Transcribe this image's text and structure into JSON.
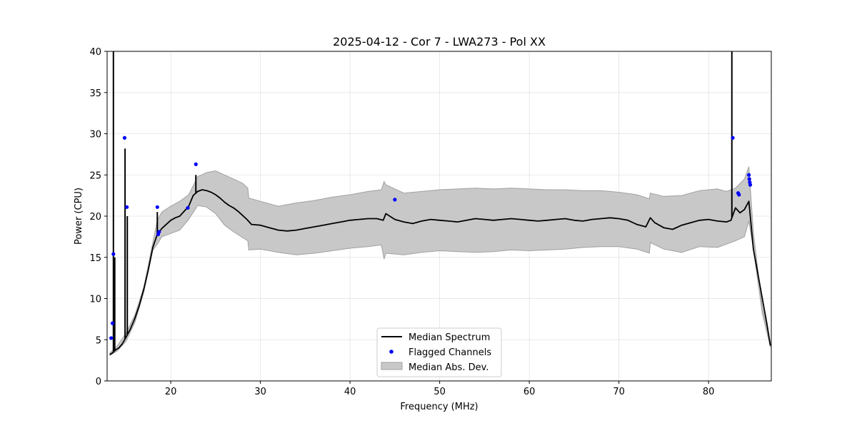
{
  "chart_data": {
    "type": "line",
    "title": "2025-04-12 - Cor 7 - LWA273 - Pol XX",
    "xlabel": "Frequency (MHz)",
    "ylabel": "Power (CPU)",
    "xlim": [
      12.9,
      87.0
    ],
    "ylim": [
      0,
      40
    ],
    "xticks": [
      20,
      30,
      40,
      50,
      60,
      70,
      80
    ],
    "yticks": [
      0,
      5,
      10,
      15,
      20,
      25,
      30,
      35,
      40
    ],
    "grid": true,
    "legend_position": "bottom-center",
    "legend": [
      "Median Spectrum",
      "Flagged Channels",
      "Median Abs. Dev."
    ],
    "colors": {
      "median": "#000000",
      "flagged": "#0000ff",
      "mad_fill": "#c8c8c8",
      "mad_edge": "#a0a0a0"
    },
    "series": [
      {
        "name": "Median Spectrum",
        "x": [
          13.2,
          13.5,
          13.7,
          13.9,
          14.2,
          14.6,
          15.0,
          15.5,
          16.0,
          16.5,
          17.0,
          17.5,
          18.0,
          18.5,
          19.0,
          19.5,
          20.0,
          20.5,
          21.0,
          21.5,
          22.0,
          22.5,
          23.0,
          23.5,
          24.0,
          24.5,
          25.0,
          25.5,
          26.0,
          26.5,
          27.0,
          27.5,
          28.0,
          28.5,
          29.0,
          30.0,
          31.0,
          32.0,
          33.0,
          34.0,
          35.0,
          36.0,
          37.0,
          38.0,
          39.0,
          40.0,
          41.0,
          42.0,
          43.0,
          43.7,
          44.0,
          45.0,
          46.0,
          47.0,
          48.0,
          49.0,
          50.0,
          51.0,
          52.0,
          53.0,
          54.0,
          55.0,
          56.0,
          57.0,
          58.0,
          59.0,
          60.0,
          61.0,
          62.0,
          63.0,
          64.0,
          65.0,
          66.0,
          67.0,
          68.0,
          69.0,
          70.0,
          71.0,
          72.0,
          73.0,
          73.5,
          74.0,
          75.0,
          76.0,
          77.0,
          78.0,
          79.0,
          80.0,
          81.0,
          82.0,
          82.5,
          83.0,
          83.5,
          84.0,
          84.5,
          85.0,
          85.5,
          86.0,
          86.5,
          86.9
        ],
        "values": [
          3.2,
          3.4,
          3.6,
          3.8,
          4.0,
          4.5,
          5.3,
          6.3,
          7.6,
          9.2,
          11.2,
          13.5,
          16.2,
          17.8,
          18.5,
          19.0,
          19.5,
          19.8,
          20.0,
          20.6,
          21.2,
          22.5,
          23.0,
          23.2,
          23.1,
          22.9,
          22.6,
          22.2,
          21.7,
          21.3,
          21.0,
          20.6,
          20.1,
          19.6,
          19.0,
          18.9,
          18.6,
          18.3,
          18.2,
          18.3,
          18.5,
          18.7,
          18.9,
          19.1,
          19.3,
          19.5,
          19.6,
          19.7,
          19.7,
          19.5,
          20.3,
          19.6,
          19.3,
          19.1,
          19.4,
          19.6,
          19.5,
          19.4,
          19.3,
          19.5,
          19.7,
          19.6,
          19.5,
          19.6,
          19.7,
          19.6,
          19.5,
          19.4,
          19.5,
          19.6,
          19.7,
          19.5,
          19.4,
          19.6,
          19.7,
          19.8,
          19.7,
          19.5,
          19.0,
          18.7,
          19.8,
          19.2,
          18.6,
          18.4,
          18.9,
          19.2,
          19.5,
          19.6,
          19.4,
          19.3,
          19.5,
          21.0,
          20.4,
          20.8,
          21.8,
          16.0,
          13.0,
          10.0,
          7.0,
          4.3
        ],
        "spikes": [
          {
            "x": 13.6,
            "top": 40
          },
          {
            "x": 13.75,
            "top": 15.0
          },
          {
            "x": 14.9,
            "top": 28.2
          },
          {
            "x": 15.15,
            "top": 20.0
          },
          {
            "x": 18.5,
            "top": 20.5
          },
          {
            "x": 22.8,
            "top": 25.0
          },
          {
            "x": 82.6,
            "top": 40
          }
        ]
      },
      {
        "name": "Median Abs. Dev.",
        "x": [
          13.2,
          14.0,
          15.0,
          16.0,
          17.0,
          18.0,
          18.5,
          19.0,
          20.0,
          21.0,
          22.0,
          23.0,
          24.0,
          25.0,
          26.0,
          27.0,
          28.0,
          28.6,
          28.7,
          30.0,
          32.0,
          34.0,
          36.0,
          38.0,
          40.0,
          42.0,
          43.5,
          43.8,
          44.0,
          46.0,
          48.0,
          50.0,
          52.0,
          54.0,
          56.0,
          58.0,
          60.0,
          62.0,
          64.0,
          66.0,
          68.0,
          70.0,
          72.0,
          73.4,
          73.5,
          75.0,
          77.0,
          79.0,
          81.0,
          82.0,
          83.0,
          84.0,
          84.5,
          85.0,
          86.0,
          86.9
        ],
        "upper": [
          3.4,
          4.2,
          5.8,
          8.0,
          11.4,
          16.8,
          19.5,
          20.5,
          21.2,
          21.8,
          22.6,
          24.8,
          25.3,
          25.5,
          25.0,
          24.5,
          24.0,
          23.4,
          22.2,
          21.8,
          21.2,
          21.6,
          21.9,
          22.3,
          22.6,
          23.0,
          23.2,
          24.2,
          23.8,
          22.8,
          23.0,
          23.2,
          23.3,
          23.4,
          23.3,
          23.4,
          23.3,
          23.2,
          23.2,
          23.1,
          23.1,
          22.9,
          22.6,
          22.1,
          22.8,
          22.4,
          22.5,
          23.1,
          23.3,
          23.0,
          23.4,
          24.5,
          26.0,
          18.0,
          9.0,
          4.5
        ],
        "lower": [
          3.1,
          3.6,
          4.8,
          7.1,
          10.8,
          15.9,
          16.6,
          17.5,
          17.9,
          18.3,
          19.6,
          21.3,
          21.1,
          20.3,
          18.9,
          18.1,
          17.4,
          17.0,
          15.9,
          16.0,
          15.6,
          15.3,
          15.5,
          15.8,
          16.1,
          16.3,
          16.5,
          14.8,
          15.5,
          15.3,
          15.6,
          15.8,
          15.7,
          15.6,
          15.7,
          15.9,
          15.8,
          15.9,
          16.0,
          16.2,
          16.3,
          16.3,
          16.0,
          15.5,
          16.8,
          16.0,
          15.6,
          16.3,
          16.2,
          16.6,
          17.0,
          17.5,
          19.4,
          16.0,
          8.2,
          4.1
        ]
      },
      {
        "name": "Flagged Channels",
        "x": [
          13.35,
          13.5,
          13.6,
          14.85,
          15.1,
          18.5,
          18.6,
          18.7,
          21.9,
          22.8,
          45.0,
          82.7,
          83.3,
          83.4,
          84.5,
          84.55,
          84.6,
          84.65
        ],
        "values": [
          5.2,
          7.0,
          15.4,
          29.5,
          21.1,
          21.1,
          17.8,
          18.1,
          21.0,
          26.3,
          22.0,
          29.5,
          22.8,
          22.6,
          25.0,
          24.5,
          24.1,
          23.8
        ]
      }
    ]
  }
}
